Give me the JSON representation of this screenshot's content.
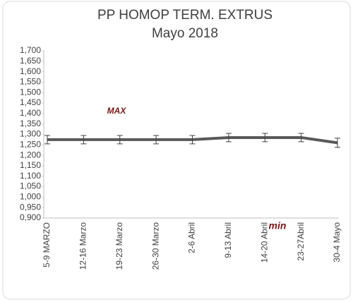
{
  "chart_data": {
    "type": "line",
    "title": "PP HOMOP TERM.  EXTRUS",
    "subtitle": "Mayo 2018",
    "categories": [
      "5-9 MARZO",
      "12-16 Marzo",
      "19-23 Marzo",
      "26-30 Marzo",
      "2-6 Abril",
      "9-13 Abril",
      "14-20 Abril",
      "23-27Abril",
      "30-4 Mayo"
    ],
    "series": [
      {
        "color": "#595959",
        "values": [
          1275,
          1275,
          1275,
          1275,
          1275,
          1285,
          1285,
          1285,
          1260
        ],
        "errors": [
          20,
          20,
          20,
          20,
          20,
          20,
          20,
          20,
          22
        ]
      }
    ],
    "ylim": [
      900,
      1700
    ],
    "yticks": [
      {
        "value": 900,
        "label": "0,900"
      },
      {
        "value": 950,
        "label": "0,950"
      },
      {
        "value": 1000,
        "label": "1,000"
      },
      {
        "value": 1050,
        "label": "1,050"
      },
      {
        "value": 1100,
        "label": "1,100"
      },
      {
        "value": 1150,
        "label": "1,150"
      },
      {
        "value": 1200,
        "label": "1,200"
      },
      {
        "value": 1250,
        "label": "1,250"
      },
      {
        "value": 1300,
        "label": "1,300"
      },
      {
        "value": 1350,
        "label": "1,350"
      },
      {
        "value": 1400,
        "label": "1,400"
      },
      {
        "value": 1450,
        "label": "1,450"
      },
      {
        "value": 1500,
        "label": "1,500"
      },
      {
        "value": 1550,
        "label": "1,550"
      },
      {
        "value": 1600,
        "label": "1,600"
      },
      {
        "value": 1650,
        "label": "1,650"
      },
      {
        "value": 1700,
        "label": "1,700"
      }
    ],
    "annotations": [
      "MAX",
      "min"
    ]
  }
}
